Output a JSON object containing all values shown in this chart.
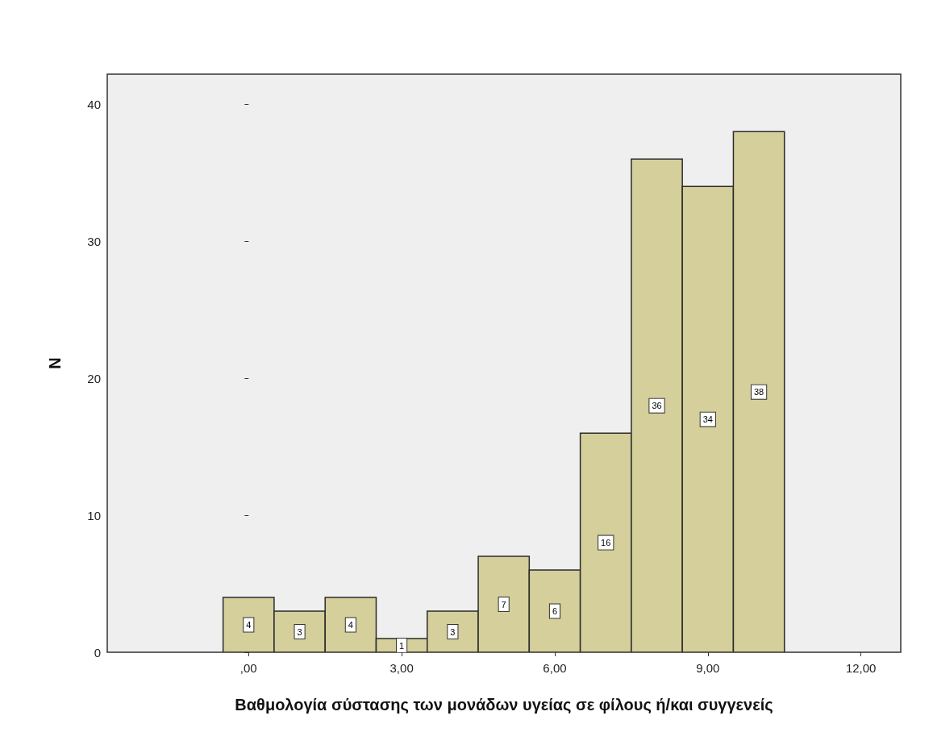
{
  "chart_data": {
    "type": "histogram",
    "xlabel": "Βαθμολογία σύστασης των μονάδων υγείας σε φίλους ή/και συγγενείς",
    "ylabel": "N",
    "bins": [
      -0.5,
      0.5,
      1.5,
      2.5,
      3.5,
      4.5,
      5.5,
      6.5,
      7.5,
      8.5,
      9.5,
      10.5
    ],
    "values": [
      4,
      3,
      4,
      1,
      3,
      7,
      6,
      16,
      36,
      34,
      38
    ],
    "color": "#d4cf9b",
    "xlim": [
      -2.77,
      12.78
    ],
    "xticks": [
      {
        "value": 0,
        "label": ",00"
      },
      {
        "value": 3,
        "label": "3,00"
      },
      {
        "value": 6,
        "label": "6,00"
      },
      {
        "value": 9,
        "label": "9,00"
      },
      {
        "value": 12,
        "label": "12,00"
      }
    ],
    "ylim": [
      0,
      42.2
    ],
    "yticks": [
      0,
      10,
      20,
      30,
      40
    ],
    "grid": false,
    "data_labels": true
  }
}
